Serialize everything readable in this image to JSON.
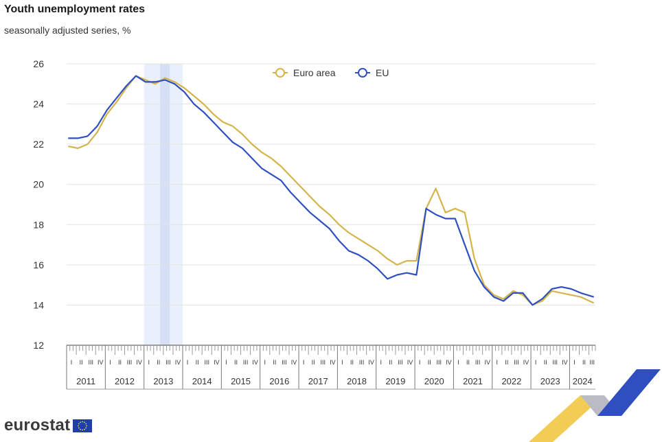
{
  "title": "Youth unemployment rates",
  "subtitle": "seasonally adjusted series, %",
  "brand": "eurostat",
  "chart_data": {
    "type": "line",
    "title": "Youth unemployment rates",
    "subtitle": "seasonally adjusted series, %",
    "ylim": [
      12,
      26
    ],
    "yticks": [
      12,
      14,
      16,
      18,
      20,
      22,
      24,
      26
    ],
    "x_range": [
      "2011-01",
      "2024-08"
    ],
    "quarter_labels": [
      "I",
      "II",
      "III",
      "IV"
    ],
    "years": [
      "2011",
      "2012",
      "2013",
      "2014",
      "2015",
      "2016",
      "2017",
      "2018",
      "2019",
      "2020",
      "2021",
      "2022",
      "2023",
      "2024"
    ],
    "legend_position": "top-center",
    "grid": "horizontal",
    "highlight_band": [
      "2013-01",
      "2013-12"
    ],
    "highlight_band_dark": [
      "2013-06",
      "2013-08"
    ],
    "series": [
      {
        "name": "Euro area",
        "color": "#d4b44a",
        "x": [
          "2011-01",
          "2011-04",
          "2011-07",
          "2011-10",
          "2012-01",
          "2012-04",
          "2012-07",
          "2012-10",
          "2013-01",
          "2013-04",
          "2013-07",
          "2013-10",
          "2014-01",
          "2014-04",
          "2014-07",
          "2014-10",
          "2015-01",
          "2015-04",
          "2015-07",
          "2015-10",
          "2016-01",
          "2016-04",
          "2016-07",
          "2016-10",
          "2017-01",
          "2017-04",
          "2017-07",
          "2017-10",
          "2018-01",
          "2018-04",
          "2018-07",
          "2018-10",
          "2019-01",
          "2019-04",
          "2019-07",
          "2019-10",
          "2020-01",
          "2020-04",
          "2020-07",
          "2020-10",
          "2021-01",
          "2021-04",
          "2021-07",
          "2021-10",
          "2022-01",
          "2022-04",
          "2022-07",
          "2022-10",
          "2023-01",
          "2023-04",
          "2023-07",
          "2023-10",
          "2024-01",
          "2024-04",
          "2024-08"
        ],
        "values": [
          21.9,
          21.8,
          22.0,
          22.6,
          23.5,
          24.1,
          24.8,
          25.4,
          25.2,
          25.0,
          25.3,
          25.1,
          24.8,
          24.4,
          24.0,
          23.5,
          23.1,
          22.9,
          22.5,
          22.0,
          21.6,
          21.3,
          20.9,
          20.4,
          19.9,
          19.4,
          18.9,
          18.5,
          18.0,
          17.6,
          17.3,
          17.0,
          16.7,
          16.3,
          16.0,
          16.2,
          16.2,
          18.8,
          19.8,
          18.6,
          18.8,
          18.6,
          16.3,
          15.0,
          14.5,
          14.3,
          14.7,
          14.5,
          14.0,
          14.2,
          14.7,
          14.6,
          14.5,
          14.4,
          14.1
        ]
      },
      {
        "name": "EU",
        "color": "#2f4fc1",
        "x": [
          "2011-01",
          "2011-04",
          "2011-07",
          "2011-10",
          "2012-01",
          "2012-04",
          "2012-07",
          "2012-10",
          "2013-01",
          "2013-04",
          "2013-07",
          "2013-10",
          "2014-01",
          "2014-04",
          "2014-07",
          "2014-10",
          "2015-01",
          "2015-04",
          "2015-07",
          "2015-10",
          "2016-01",
          "2016-04",
          "2016-07",
          "2016-10",
          "2017-01",
          "2017-04",
          "2017-07",
          "2017-10",
          "2018-01",
          "2018-04",
          "2018-07",
          "2018-10",
          "2019-01",
          "2019-04",
          "2019-07",
          "2019-10",
          "2020-01",
          "2020-04",
          "2020-07",
          "2020-10",
          "2021-01",
          "2021-04",
          "2021-07",
          "2021-10",
          "2022-01",
          "2022-04",
          "2022-07",
          "2022-10",
          "2023-01",
          "2023-04",
          "2023-07",
          "2023-10",
          "2024-01",
          "2024-04",
          "2024-08"
        ],
        "values": [
          22.3,
          22.3,
          22.4,
          22.9,
          23.7,
          24.3,
          24.9,
          25.4,
          25.1,
          25.1,
          25.2,
          25.0,
          24.6,
          24.0,
          23.6,
          23.1,
          22.6,
          22.1,
          21.8,
          21.3,
          20.8,
          20.5,
          20.2,
          19.6,
          19.1,
          18.6,
          18.2,
          17.8,
          17.2,
          16.7,
          16.5,
          16.2,
          15.8,
          15.3,
          15.5,
          15.6,
          15.5,
          18.8,
          18.5,
          18.3,
          18.3,
          17.0,
          15.7,
          14.9,
          14.4,
          14.2,
          14.6,
          14.6,
          14.0,
          14.3,
          14.8,
          14.9,
          14.8,
          14.6,
          14.4
        ]
      }
    ]
  },
  "deco_colors": {
    "gold": "#f2c94c",
    "silver": "#b9bcc3",
    "blue": "#2f4fc1"
  }
}
